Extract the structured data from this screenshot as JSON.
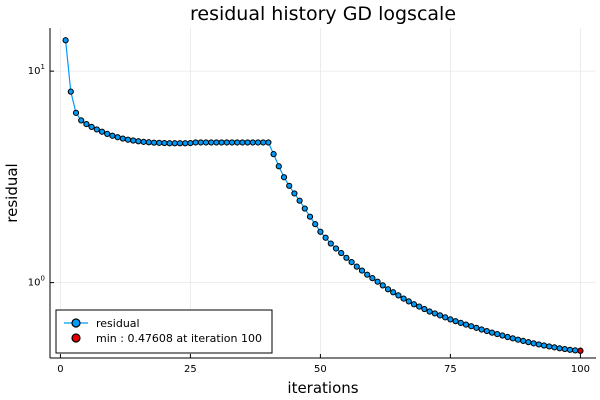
{
  "chart_data": {
    "type": "line",
    "title": "residual history GD logscale",
    "xlabel": "iterations",
    "ylabel": "residual",
    "xlim": [
      -2,
      103
    ],
    "ylim": [
      0.44,
      16.0
    ],
    "yscale": "log",
    "grid": true,
    "legend_position": "bottom-left",
    "x_ticks": [
      {
        "value": 0,
        "label": "0"
      },
      {
        "value": 25,
        "label": "25"
      },
      {
        "value": 50,
        "label": "50"
      },
      {
        "value": 75,
        "label": "75"
      },
      {
        "value": 100,
        "label": "100"
      }
    ],
    "y_ticks": [
      {
        "value": 1,
        "base": "10",
        "exponent": "0"
      },
      {
        "value": 10,
        "base": "10",
        "exponent": "1"
      }
    ],
    "series": [
      {
        "name": "residual",
        "color": "#009af9",
        "x": [
          1,
          2,
          3,
          4,
          5,
          6,
          7,
          8,
          9,
          10,
          11,
          12,
          13,
          14,
          15,
          16,
          17,
          18,
          19,
          20,
          21,
          22,
          23,
          24,
          25,
          26,
          27,
          28,
          29,
          30,
          31,
          32,
          33,
          34,
          35,
          36,
          37,
          38,
          39,
          40,
          41,
          42,
          43,
          44,
          45,
          46,
          47,
          48,
          49,
          50,
          51,
          52,
          53,
          54,
          55,
          56,
          57,
          58,
          59,
          60,
          61,
          62,
          63,
          64,
          65,
          66,
          67,
          68,
          69,
          70,
          71,
          72,
          73,
          74,
          75,
          76,
          77,
          78,
          79,
          80,
          81,
          82,
          83,
          84,
          85,
          86,
          87,
          88,
          89,
          90,
          91,
          92,
          93,
          94,
          95,
          96,
          97,
          98,
          99,
          100
        ],
        "y": [
          14.0,
          8.0,
          6.35,
          5.85,
          5.62,
          5.45,
          5.3,
          5.17,
          5.05,
          4.95,
          4.87,
          4.8,
          4.74,
          4.7,
          4.66,
          4.63,
          4.61,
          4.59,
          4.58,
          4.57,
          4.56,
          4.56,
          4.56,
          4.56,
          4.57,
          4.6,
          4.6,
          4.6,
          4.6,
          4.6,
          4.6,
          4.6,
          4.6,
          4.6,
          4.6,
          4.6,
          4.6,
          4.6,
          4.6,
          4.6,
          4.05,
          3.55,
          3.15,
          2.87,
          2.64,
          2.44,
          2.24,
          2.05,
          1.89,
          1.74,
          1.63,
          1.53,
          1.45,
          1.38,
          1.31,
          1.25,
          1.19,
          1.14,
          1.09,
          1.05,
          1.01,
          0.97,
          0.93,
          0.9,
          0.87,
          0.84,
          0.815,
          0.79,
          0.77,
          0.75,
          0.73,
          0.715,
          0.7,
          0.685,
          0.67,
          0.657,
          0.645,
          0.633,
          0.622,
          0.611,
          0.6,
          0.59,
          0.58,
          0.571,
          0.562,
          0.553,
          0.545,
          0.537,
          0.53,
          0.523,
          0.516,
          0.51,
          0.504,
          0.499,
          0.494,
          0.489,
          0.485,
          0.481,
          0.478,
          0.47608
        ]
      },
      {
        "name": "min : 0.47608 at iteration 100",
        "color": "#e20000",
        "x": [
          100
        ],
        "y": [
          0.47608
        ]
      }
    ]
  }
}
